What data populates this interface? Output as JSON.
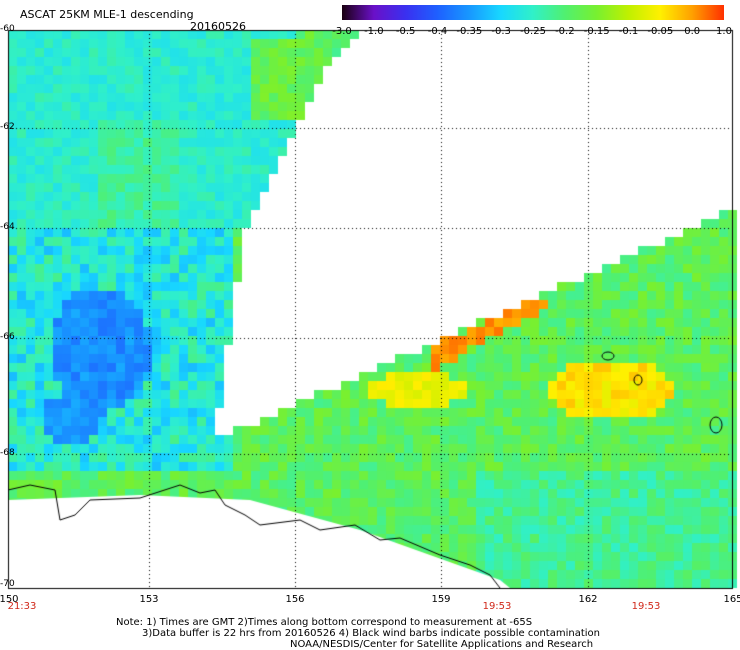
{
  "header": {
    "title": "ASCAT 25KM MLE-1 descending",
    "date": "20160526"
  },
  "colorbar": {
    "ticks": [
      "-3.0",
      "-1.0",
      "-0.5",
      "-0.4",
      "-0.35",
      "-0.3",
      "-0.25",
      "-0.2",
      "-0.15",
      "-0.1",
      "-0.05",
      "0.0",
      "1.0"
    ],
    "colors": [
      "#1a0010",
      "#6a10c8",
      "#3a30f0",
      "#1e60ff",
      "#1898ff",
      "#18d8ff",
      "#30f0c8",
      "#50f070",
      "#78f030",
      "#c0f000",
      "#fff000",
      "#ffa000",
      "#ff3000"
    ]
  },
  "map": {
    "lat_labels": [
      "-60",
      "-62",
      "-64",
      "-66",
      "-68",
      "-70"
    ],
    "lon_labels": [
      "150",
      "153",
      "156",
      "159",
      "162",
      "165"
    ],
    "time_labels": [
      "21:33",
      "19:53",
      "19:53"
    ],
    "time_color": "#d0281a"
  },
  "footer": {
    "note1": "Note: 1) Times are GMT 2)Times along bottom correspond to measurement at -65S",
    "note2": "3)Data buffer is 22 hrs from 20160526 4) Black wind barbs indicate possible contamination",
    "note3": "NOAA/NESDIS/Center for Satellite Applications and Research"
  }
}
